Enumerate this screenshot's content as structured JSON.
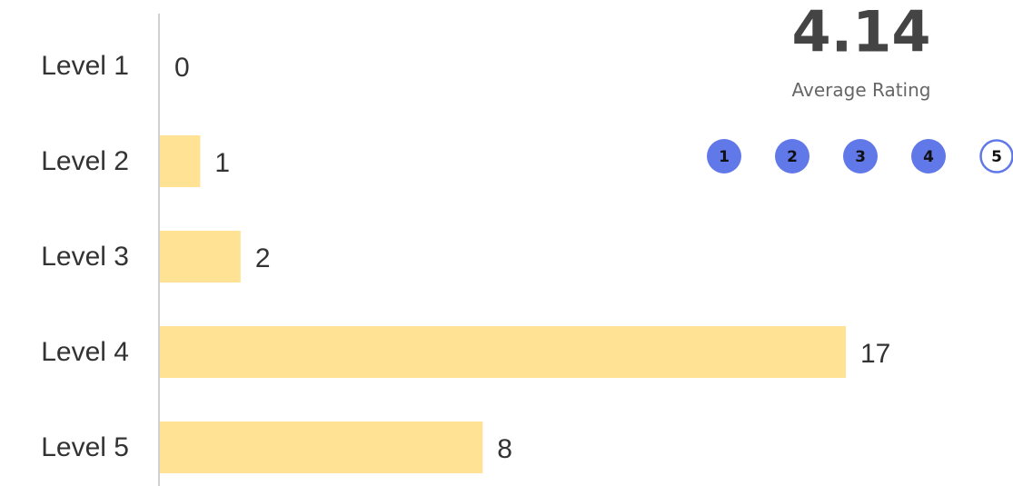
{
  "chart_data": {
    "type": "bar",
    "orientation": "horizontal",
    "categories": [
      "Level 1",
      "Level 2",
      "Level 3",
      "Level 4",
      "Level 5"
    ],
    "values": [
      0,
      1,
      2,
      17,
      8
    ],
    "color": "#ffe294"
  },
  "rating": {
    "value": 4.14,
    "label": "Average Rating",
    "steps": [
      1,
      2,
      3,
      4,
      5
    ],
    "color": "#6178e8"
  }
}
